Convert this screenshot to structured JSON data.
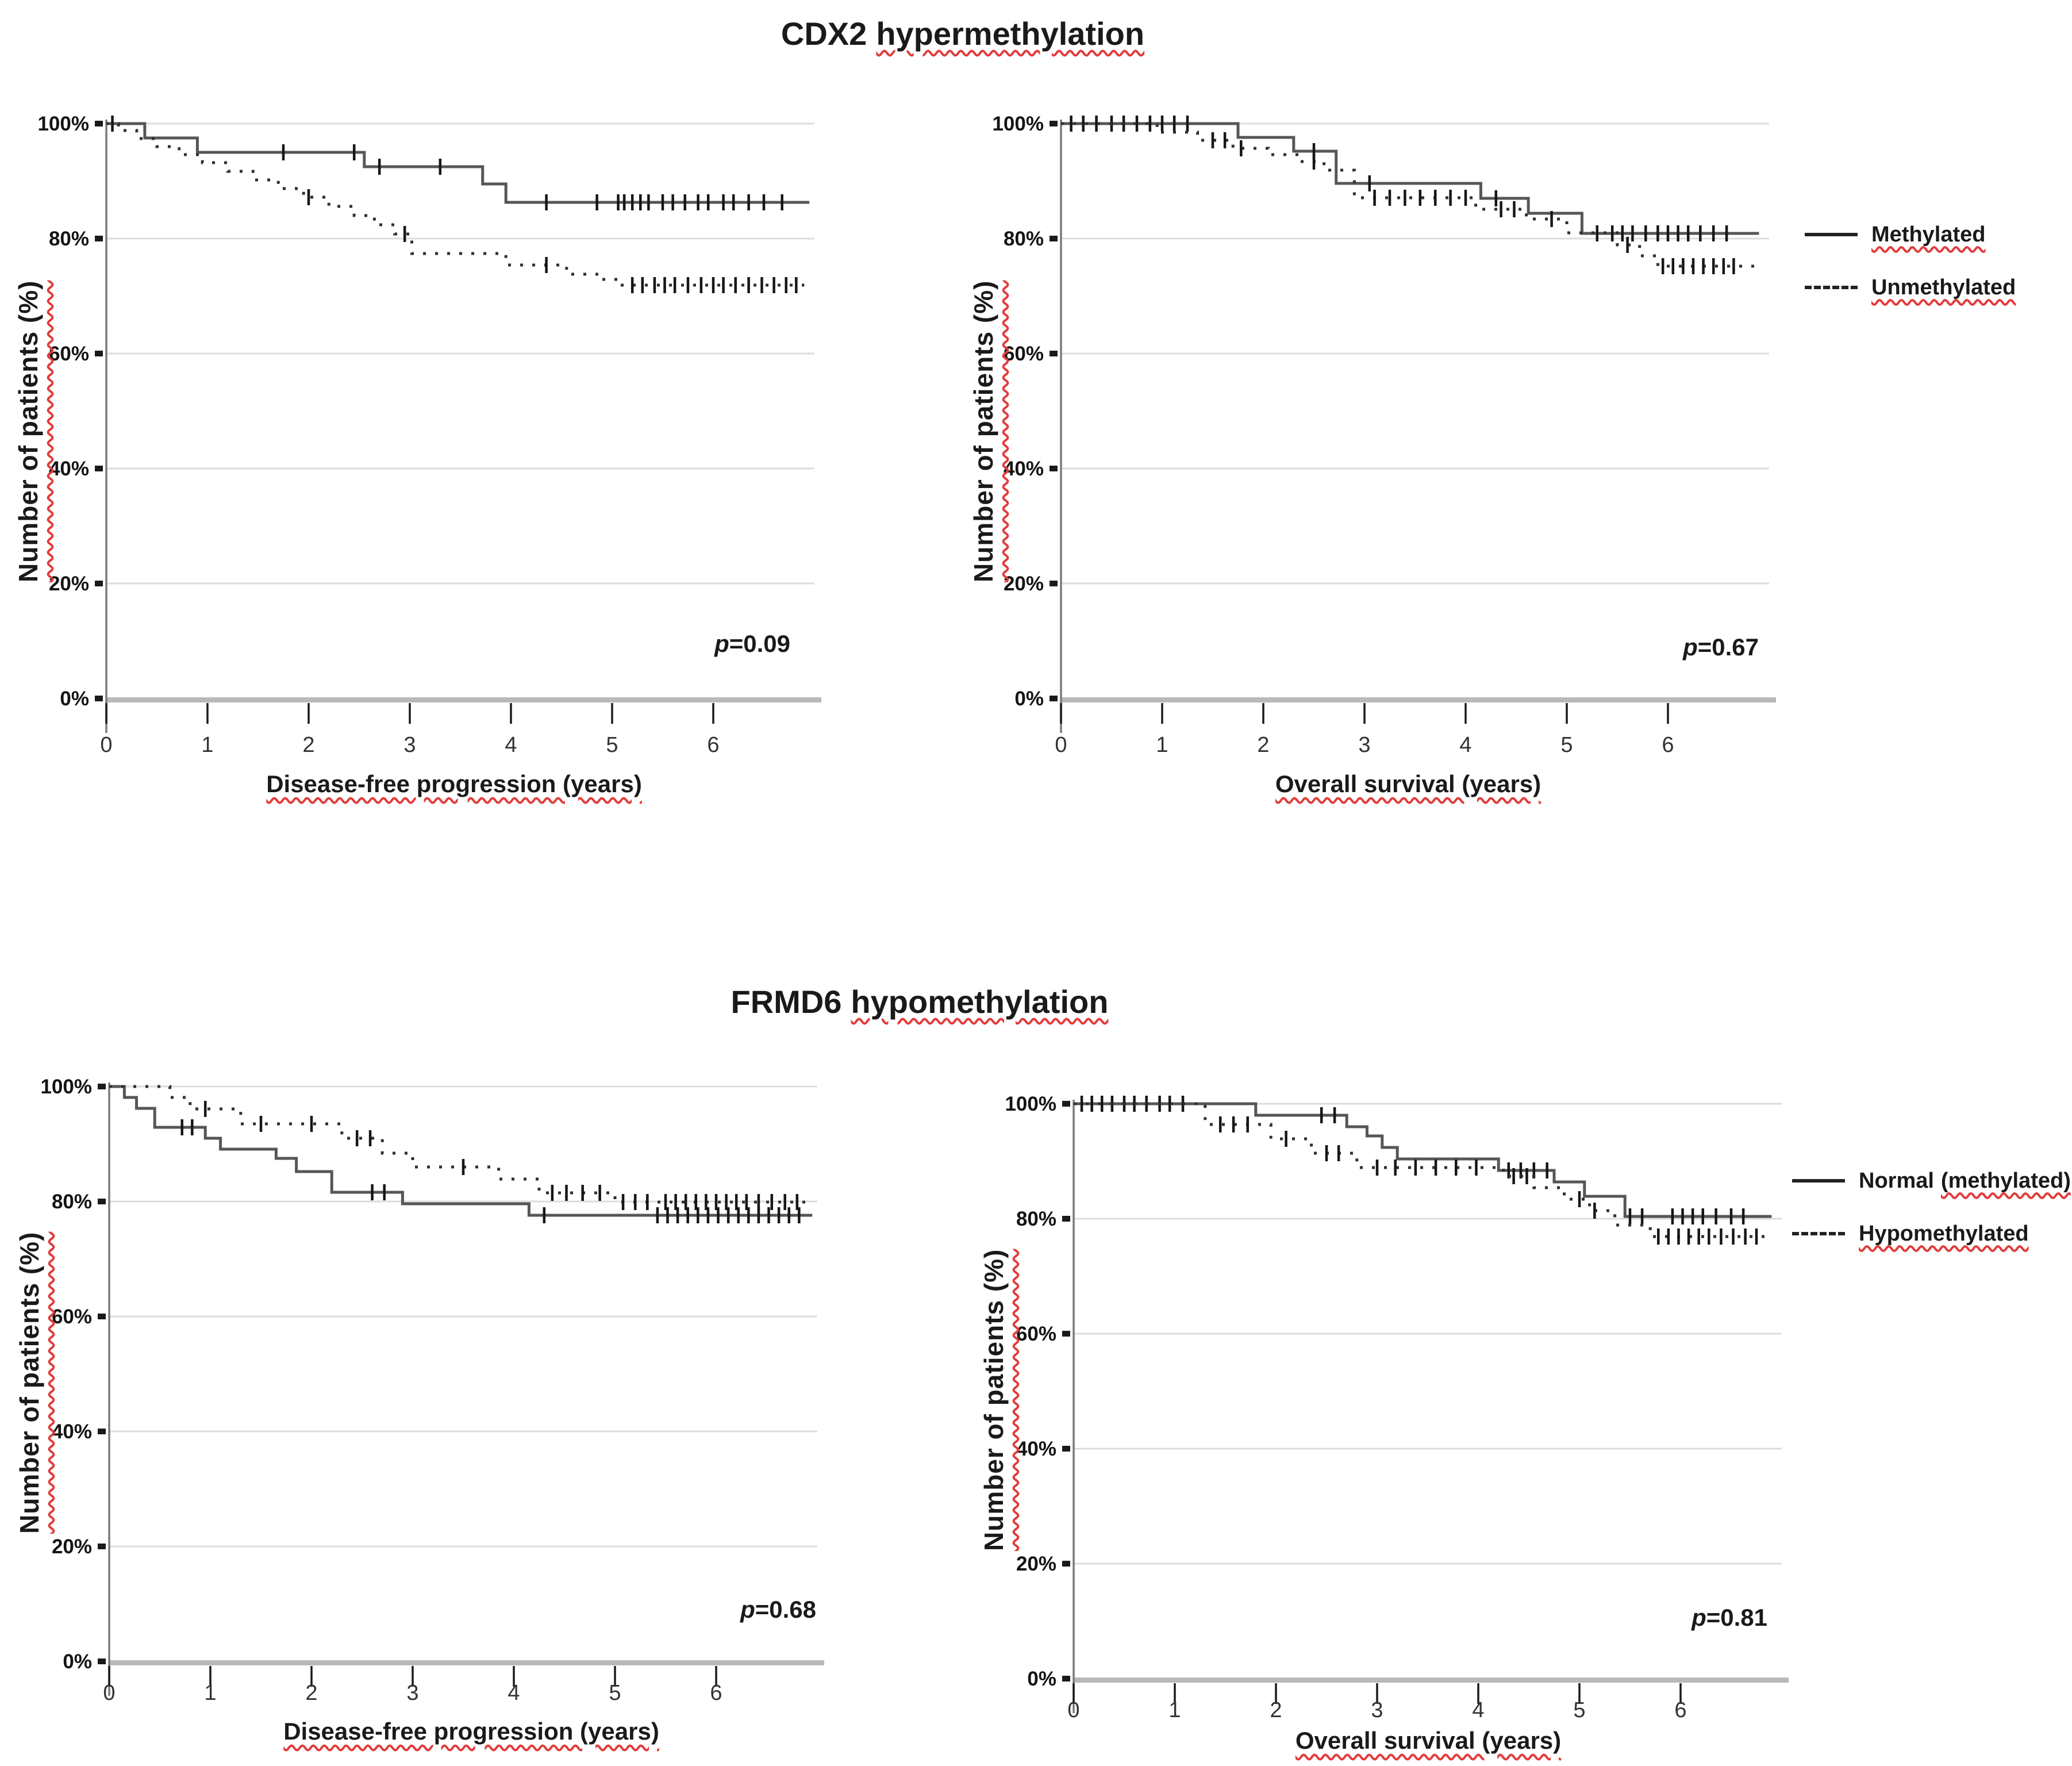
{
  "figure": {
    "background": "#ffffff",
    "underline_color": "#e23b3b",
    "curve_color_solid": "#565656",
    "curve_color_dashed": "#303030",
    "censor_color": "#161616",
    "grid_color": "#dcdcdc",
    "titles": {
      "top": {
        "gene": "CDX2",
        "term": "hypermethylation"
      },
      "bottom": {
        "gene": "FRMD6",
        "term": "hypomethylation"
      }
    },
    "ylabel": "Number of patients  (%)",
    "legend_top": {
      "items": [
        {
          "label": "Methylated",
          "line_style": "solid"
        },
        {
          "label": "Unmethylated",
          "line_style": "dashed"
        }
      ]
    },
    "legend_bottom": {
      "items": [
        {
          "label_prefix": "Normal",
          "label_underlined": "(methylated)",
          "line_style": "solid"
        },
        {
          "label_prefix": "",
          "label_underlined": "Hypomethylated",
          "line_style": "dashed"
        }
      ]
    }
  },
  "chart_data": [
    {
      "type": "line",
      "subtype": "kaplan_meier_step",
      "group_title": "CDX2 hypermethylation",
      "xlabel": "Disease-free progression (years)",
      "ylabel": "Number of patients  (%)",
      "p_symbol": "p",
      "p_rest": "=0.09",
      "xlim": [
        0,
        6.95
      ],
      "ylim": [
        0,
        100
      ],
      "x_ticks": [
        0,
        1,
        2,
        3,
        4,
        5,
        6
      ],
      "y_ticks": [
        "100%",
        "80%",
        "60%",
        "40%",
        "20%",
        "0%"
      ],
      "grid": true,
      "series": [
        {
          "name": "Methylated",
          "style": "solid",
          "steps": [
            [
              0,
              100
            ],
            [
              0.38,
              97.5
            ],
            [
              0.9,
              95
            ],
            [
              2.55,
              92.5
            ],
            [
              3.72,
              89.5
            ],
            [
              3.95,
              86.3
            ]
          ],
          "end": 6.95,
          "censor_times": [
            0.06,
            1.75,
            2.45,
            2.7,
            3.3,
            4.35,
            4.85,
            5.06,
            5.12,
            5.2,
            5.28,
            5.36,
            5.5,
            5.6,
            5.72,
            5.85,
            5.95,
            6.1,
            6.2,
            6.35,
            6.5,
            6.68
          ]
        },
        {
          "name": "Unmethylated",
          "style": "dashed",
          "steps": [
            [
              0,
              100
            ],
            [
              0.12,
              98.8
            ],
            [
              0.3,
              97.4
            ],
            [
              0.5,
              96
            ],
            [
              0.72,
              94.6
            ],
            [
              0.95,
              93.2
            ],
            [
              1.2,
              91.7
            ],
            [
              1.45,
              90.2
            ],
            [
              1.7,
              88.7
            ],
            [
              1.95,
              87.2
            ],
            [
              2.2,
              85.6
            ],
            [
              2.45,
              84
            ],
            [
              2.65,
              82.4
            ],
            [
              2.85,
              80.8
            ],
            [
              3.02,
              77.4
            ],
            [
              3.95,
              75.4
            ],
            [
              4.55,
              73.8
            ],
            [
              4.9,
              72.9
            ],
            [
              5.08,
              71.9
            ]
          ],
          "end": 6.9,
          "censor_times": [
            2.0,
            2.95,
            4.35,
            5.2,
            5.3,
            5.42,
            5.52,
            5.62,
            5.75,
            5.88,
            6.0,
            6.1,
            6.22,
            6.35,
            6.48,
            6.6,
            6.72,
            6.82
          ]
        }
      ]
    },
    {
      "type": "line",
      "subtype": "kaplan_meier_step",
      "group_title": "CDX2 hypermethylation",
      "xlabel": "Overall survival (years)",
      "ylabel": "Number of patients  (%)",
      "p_symbol": "p",
      "p_rest": "=0.67",
      "xlim": [
        0,
        6.95
      ],
      "ylim": [
        0,
        100
      ],
      "x_ticks": [
        0,
        1,
        2,
        3,
        4,
        5,
        6
      ],
      "y_ticks": [
        "100%",
        "80%",
        "60%",
        "40%",
        "20%",
        "0%"
      ],
      "grid": true,
      "series": [
        {
          "name": "Methylated",
          "style": "solid",
          "steps": [
            [
              0,
              100
            ],
            [
              1.75,
              97.6
            ],
            [
              2.3,
              95.2
            ],
            [
              2.72,
              89.6
            ],
            [
              4.15,
              87
            ],
            [
              4.62,
              84.4
            ],
            [
              5.15,
              80.9
            ]
          ],
          "end": 6.9,
          "censor_times": [
            0.1,
            0.22,
            0.35,
            0.5,
            0.62,
            0.75,
            0.88,
            1.0,
            1.12,
            1.25,
            2.5,
            3.05,
            4.3,
            5.3,
            5.45,
            5.55,
            5.65,
            5.78,
            5.9,
            6.0,
            6.1,
            6.2,
            6.32,
            6.45,
            6.58
          ]
        },
        {
          "name": "Unmethylated",
          "style": "dashed",
          "steps": [
            [
              0,
              100
            ],
            [
              0.95,
              98.5
            ],
            [
              1.35,
              97.1
            ],
            [
              1.7,
              95.7
            ],
            [
              2.05,
              94.6
            ],
            [
              2.35,
              93.4
            ],
            [
              2.6,
              91.9
            ],
            [
              2.9,
              87.1
            ],
            [
              4.1,
              85.1
            ],
            [
              4.6,
              83.4
            ],
            [
              5.0,
              81
            ],
            [
              5.5,
              78.9
            ],
            [
              5.72,
              77
            ],
            [
              5.9,
              75.2
            ]
          ],
          "end": 6.9,
          "censor_times": [
            1.5,
            1.62,
            1.78,
            2.5,
            3.1,
            3.25,
            3.4,
            3.55,
            3.7,
            3.85,
            4.0,
            4.35,
            4.48,
            4.85,
            5.6,
            5.95,
            6.05,
            6.15,
            6.25,
            6.35,
            6.45,
            6.55,
            6.65
          ]
        }
      ]
    },
    {
      "type": "line",
      "subtype": "kaplan_meier_step",
      "group_title": "FRMD6 hypomethylation",
      "xlabel": "Disease-free progression (years)",
      "ylabel": "Number of patients  (%)",
      "p_symbol": "p",
      "p_rest": "=0.68",
      "xlim": [
        0,
        6.95
      ],
      "ylim": [
        0,
        100
      ],
      "x_ticks": [
        0,
        1,
        2,
        3,
        4,
        5,
        6
      ],
      "y_ticks": [
        "100%",
        "80%",
        "60%",
        "40%",
        "20%",
        "0%"
      ],
      "grid": true,
      "series": [
        {
          "name": "Normal (methylated)",
          "style": "solid",
          "steps": [
            [
              0,
              100
            ],
            [
              0.15,
              98.1
            ],
            [
              0.27,
              96.2
            ],
            [
              0.45,
              92.9
            ],
            [
              0.95,
              91
            ],
            [
              1.1,
              89.1
            ],
            [
              1.65,
              87.5
            ],
            [
              1.85,
              85.2
            ],
            [
              2.2,
              81.6
            ],
            [
              2.9,
              79.6
            ],
            [
              4.15,
              77.6
            ]
          ],
          "end": 6.95,
          "censor_times": [
            0.72,
            0.82,
            2.6,
            2.72,
            4.3,
            5.42,
            5.52,
            5.62,
            5.72,
            5.82,
            5.92,
            6.02,
            6.12,
            6.22,
            6.32,
            6.42,
            6.52,
            6.62,
            6.72,
            6.82
          ]
        },
        {
          "name": "Hypomethylated",
          "style": "dashed",
          "steps": [
            [
              0,
              100
            ],
            [
              0.6,
              98.1
            ],
            [
              0.8,
              96.1
            ],
            [
              1.3,
              93.5
            ],
            [
              2.3,
              91
            ],
            [
              2.7,
              88.4
            ],
            [
              3.0,
              86
            ],
            [
              3.85,
              83.9
            ],
            [
              4.25,
              81.5
            ],
            [
              5.0,
              79.9
            ]
          ],
          "end": 6.95,
          "censor_times": [
            0.95,
            1.5,
            2.0,
            2.45,
            2.58,
            3.5,
            4.38,
            4.52,
            4.68,
            4.85,
            5.08,
            5.2,
            5.32,
            5.5,
            5.6,
            5.7,
            5.8,
            5.9,
            6.0,
            6.1,
            6.2,
            6.3,
            6.42,
            6.55,
            6.68,
            6.8
          ]
        }
      ]
    },
    {
      "type": "line",
      "subtype": "kaplan_meier_step",
      "group_title": "FRMD6 hypomethylation",
      "xlabel": "Overall survival (years)",
      "ylabel": "Number of patients  (%)",
      "p_symbol": "p",
      "p_rest": "=0.81",
      "xlim": [
        0,
        6.95
      ],
      "ylim": [
        0,
        100
      ],
      "x_ticks": [
        0,
        1,
        2,
        3,
        4,
        5,
        6
      ],
      "y_ticks": [
        "100%",
        "80%",
        "60%",
        "40%",
        "20%",
        "0%"
      ],
      "grid": true,
      "series": [
        {
          "name": "Normal (methylated)",
          "style": "solid",
          "steps": [
            [
              0,
              100
            ],
            [
              1.8,
              98
            ],
            [
              2.7,
              96
            ],
            [
              2.9,
              94.4
            ],
            [
              3.05,
              92.4
            ],
            [
              3.2,
              90.4
            ],
            [
              4.2,
              88.4
            ],
            [
              4.75,
              86.4
            ],
            [
              5.05,
              83.9
            ],
            [
              5.45,
              80.4
            ]
          ],
          "end": 6.9,
          "censor_times": [
            0.08,
            0.18,
            0.28,
            0.38,
            0.5,
            0.6,
            0.72,
            0.85,
            0.95,
            1.08,
            2.45,
            2.58,
            4.3,
            4.42,
            4.55,
            4.68,
            5.5,
            5.62,
            5.92,
            6.02,
            6.12,
            6.22,
            6.35,
            6.5,
            6.62
          ]
        },
        {
          "name": "Hypomethylated",
          "style": "dashed",
          "steps": [
            [
              0,
              100
            ],
            [
              1.3,
              96.4
            ],
            [
              1.95,
              93.9
            ],
            [
              2.35,
              91.4
            ],
            [
              2.8,
              88.9
            ],
            [
              4.25,
              87.4
            ],
            [
              4.55,
              85.4
            ],
            [
              4.85,
              83.4
            ],
            [
              5.1,
              81.4
            ],
            [
              5.35,
              78.9
            ],
            [
              5.7,
              76.9
            ]
          ],
          "end": 6.85,
          "censor_times": [
            1.45,
            1.58,
            1.72,
            2.1,
            2.5,
            2.62,
            3.0,
            3.18,
            3.38,
            3.58,
            3.78,
            3.98,
            4.35,
            4.48,
            5.0,
            5.15,
            5.78,
            5.88,
            5.98,
            6.08,
            6.18,
            6.28,
            6.4,
            6.52,
            6.64,
            6.75
          ]
        }
      ]
    }
  ]
}
